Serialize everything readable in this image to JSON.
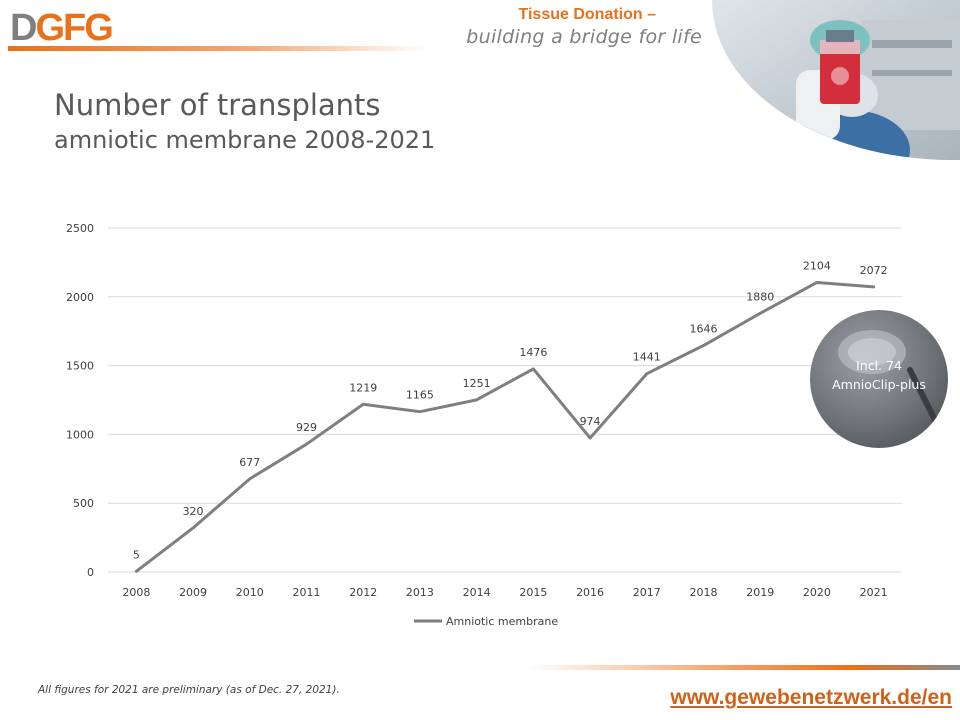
{
  "brand": {
    "logo_first": "D",
    "logo_rest": "GFG",
    "tagline_line1": "Tissue Donation –",
    "tagline_line2": "building a bridge for life",
    "logo_grey": "#7f7f7f",
    "accent": "#e8711c"
  },
  "heading": {
    "title": "Number of transplants",
    "subtitle": "amniotic membrane 2008-2021"
  },
  "callout": {
    "line1": "Incl. 74",
    "line2": "AmnioClip-plus"
  },
  "footer": {
    "note": "All figures for 2021 are preliminary (as of Dec. 27, 2021).",
    "url": "www.gewebenetzwerk.de/en"
  },
  "chart_data": {
    "type": "line",
    "categories": [
      "2008",
      "2009",
      "2010",
      "2011",
      "2012",
      "2013",
      "2014",
      "2015",
      "2016",
      "2017",
      "2018",
      "2019",
      "2020",
      "2021"
    ],
    "series": [
      {
        "name": "Amniotic membrane",
        "values": [
          5,
          320,
          677,
          929,
          1219,
          1165,
          1251,
          1476,
          974,
          1441,
          1646,
          1880,
          2104,
          2072
        ],
        "color": "#7f7f7f"
      }
    ],
    "ylim": [
      0,
      2500
    ],
    "yticks": [
      0,
      500,
      1000,
      1500,
      2000,
      2500
    ],
    "grid": true,
    "data_labels": true,
    "legend": "bottom"
  }
}
